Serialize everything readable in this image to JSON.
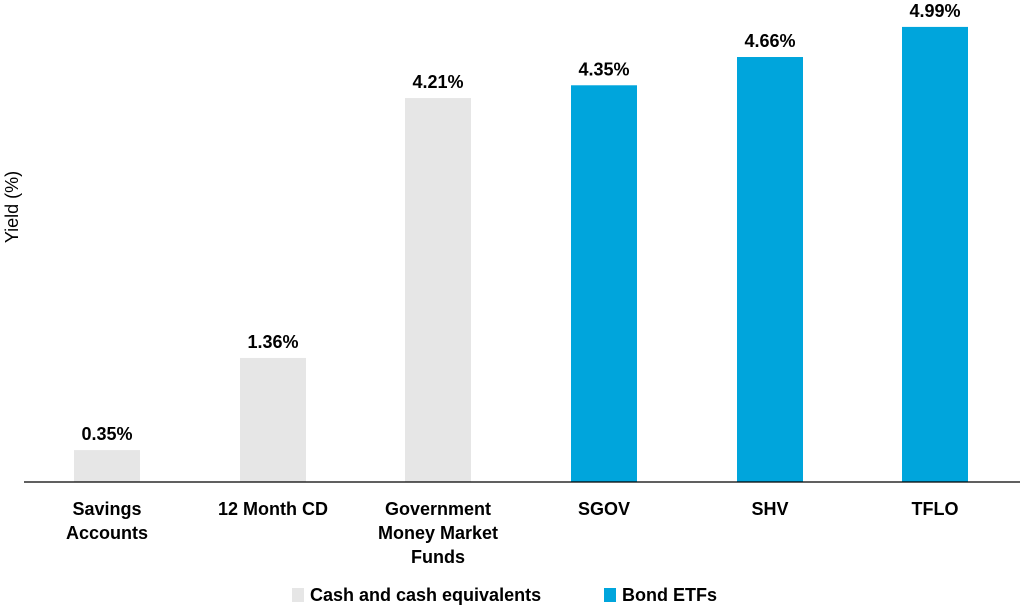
{
  "chart_data": {
    "type": "bar",
    "title": "",
    "xlabel": "",
    "ylabel": "Yield (%)",
    "ylim": [
      0,
      5
    ],
    "grid": false,
    "legend_placement": "bottom-center",
    "categories": [
      [
        "Savings",
        "Accounts"
      ],
      [
        "12 Month CD"
      ],
      [
        "Government",
        "Money Market",
        "Funds"
      ],
      [
        "SGOV"
      ],
      [
        "SHV"
      ],
      [
        "TFLO"
      ]
    ],
    "values": [
      0.35,
      1.36,
      4.21,
      4.35,
      4.66,
      4.99
    ],
    "value_labels": [
      "0.35%",
      "1.36%",
      "4.21%",
      "4.35%",
      "4.66%",
      "4.99%"
    ],
    "groups": [
      "Cash and cash equivalents",
      "Cash and cash equivalents",
      "Cash and cash equivalents",
      "Bond ETFs",
      "Bond ETFs",
      "Bond ETFs"
    ],
    "legend": [
      {
        "name": "Cash and cash equivalents",
        "color": "#e6e6e6"
      },
      {
        "name": "Bond ETFs",
        "color": "#00a5dc"
      }
    ]
  }
}
